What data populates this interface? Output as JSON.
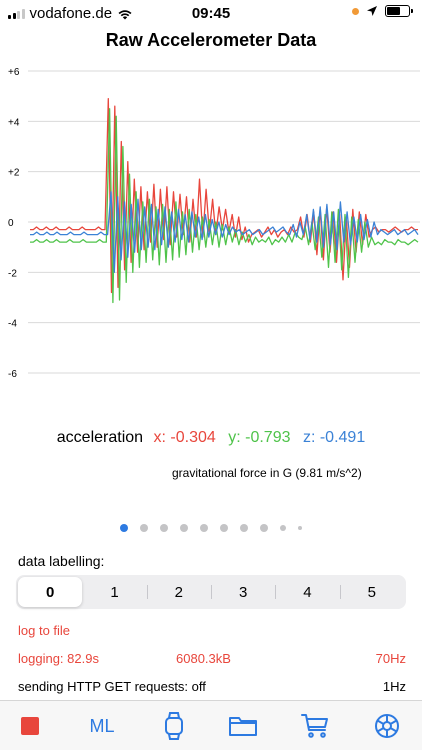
{
  "status_bar": {
    "carrier": "vodafone.de",
    "time": "09:45",
    "signal_bars": 4,
    "signal_active": 2,
    "battery_level": 0.6,
    "icons": [
      "wifi-icon",
      "location-arrow-icon",
      "battery-icon"
    ]
  },
  "title": "Raw Accelerometer Data",
  "chart_data": {
    "type": "line",
    "title": "Raw Accelerometer Data",
    "ylim": [
      -6,
      6
    ],
    "y_ticks": [
      "+6",
      "+4",
      "+2",
      "0",
      "-2",
      "-4",
      "-6"
    ],
    "y_tick_values": [
      6,
      4,
      2,
      0,
      -2,
      -4,
      -6
    ],
    "grid": true,
    "legend": "none",
    "series": [
      {
        "name": "x",
        "color": "#e8463c",
        "values": [
          -0.3,
          -0.3,
          -0.2,
          -0.3,
          -0.3,
          -0.2,
          -0.3,
          -0.3,
          -0.2,
          -0.3,
          -0.3,
          -0.3,
          -0.2,
          -0.3,
          -0.3,
          -0.3,
          -0.2,
          -0.3,
          -0.3,
          -0.3,
          -0.3,
          -0.2,
          -0.3,
          -0.3,
          4.9,
          -2.8,
          4.6,
          -2.6,
          3.2,
          -1.9,
          2.4,
          -1.6,
          1.7,
          -1.2,
          1.4,
          -1.1,
          1.2,
          -0.8,
          1.5,
          -1.0,
          1.3,
          -0.7,
          1.4,
          -0.9,
          1.2,
          -0.6,
          1.1,
          -0.5,
          1.0,
          -0.8,
          0.9,
          -0.6,
          1.7,
          -0.6,
          1.3,
          -0.4,
          0.9,
          -0.5,
          0.6,
          -0.3,
          0.5,
          -0.4,
          0.3,
          -0.6,
          0.2,
          -0.7,
          -0.2,
          -0.8,
          -0.5,
          -0.4,
          -0.3,
          -0.6,
          -0.4,
          -0.2,
          -0.5,
          -0.3,
          -0.6,
          -0.4,
          -0.3,
          -0.5,
          -0.2,
          -0.4,
          -0.3,
          0.2,
          -0.6,
          0.3,
          -0.8,
          0.4,
          -1.3,
          0.5,
          -1.5,
          0.6,
          -1.2,
          0.4,
          -1.6,
          0.3,
          -2.3,
          0.2,
          -1.8,
          0.5,
          -1.2,
          0.4,
          -0.9,
          0.3,
          -0.6,
          -0.3,
          -0.2,
          -0.4,
          -0.3,
          -0.3,
          -0.4,
          -0.3,
          -0.2,
          -0.3,
          -0.4,
          -0.3,
          -0.3,
          -0.2,
          -0.3,
          -0.3
        ]
      },
      {
        "name": "y",
        "color": "#4fc34a",
        "values": [
          -0.8,
          -0.8,
          -0.7,
          -0.8,
          -0.8,
          -0.7,
          -0.8,
          -0.8,
          -0.7,
          -0.8,
          -0.8,
          -0.8,
          -0.7,
          -0.8,
          -0.8,
          -0.8,
          -0.7,
          -0.8,
          -0.8,
          -0.8,
          -0.8,
          -0.7,
          -0.8,
          -0.8,
          4.5,
          -3.2,
          4.2,
          -3.1,
          3.0,
          -2.4,
          1.9,
          -2.0,
          1.2,
          -1.8,
          0.8,
          -1.6,
          0.9,
          -1.5,
          0.6,
          -1.7,
          0.7,
          -1.6,
          0.5,
          -1.5,
          0.8,
          -1.4,
          0.4,
          -1.3,
          0.5,
          -1.2,
          0.3,
          -1.1,
          0.2,
          -1.0,
          0.1,
          -0.9,
          0.0,
          -1.0,
          -0.1,
          -0.9,
          -0.2,
          -0.8,
          -0.3,
          -0.9,
          -0.4,
          -0.8,
          -0.5,
          -0.9,
          -0.6,
          -0.8,
          -0.7,
          -0.8,
          -0.6,
          -0.9,
          -0.7,
          -0.8,
          -0.6,
          -0.8,
          -0.5,
          -0.8,
          -0.4,
          -0.6,
          -0.7,
          -0.2,
          -0.9,
          0.0,
          -1.1,
          0.2,
          -1.4,
          0.3,
          -1.8,
          0.4,
          -1.6,
          0.5,
          -1.9,
          0.3,
          -2.2,
          0.2,
          -1.6,
          0.1,
          -1.2,
          0.0,
          -1.0,
          -0.6,
          -0.9,
          -0.8,
          -0.9,
          -0.7,
          -0.8,
          -0.8,
          -0.9,
          -0.7,
          -0.8,
          -0.8,
          -0.9,
          -0.8,
          -0.7,
          -0.8
        ]
      },
      {
        "name": "z",
        "color": "#3b82d6",
        "values": [
          -0.5,
          -0.5,
          -0.4,
          -0.5,
          -0.5,
          -0.4,
          -0.5,
          -0.5,
          -0.4,
          -0.5,
          -0.5,
          -0.5,
          -0.4,
          -0.5,
          -0.5,
          -0.5,
          -0.4,
          -0.5,
          -0.5,
          -0.5,
          -0.5,
          -0.4,
          -0.5,
          -0.5,
          1.2,
          -2.0,
          1.0,
          -1.5,
          0.8,
          -1.4,
          0.7,
          -1.2,
          0.9,
          -1.1,
          0.6,
          -1.0,
          0.7,
          -1.1,
          0.5,
          -0.9,
          0.6,
          -1.0,
          0.4,
          -0.8,
          0.5,
          -0.7,
          0.3,
          -0.8,
          0.4,
          -0.6,
          0.2,
          -0.7,
          0.3,
          -0.6,
          0.1,
          -0.5,
          0.0,
          -0.6,
          -0.1,
          -0.5,
          -0.2,
          -0.4,
          -0.3,
          -0.5,
          -0.4,
          -0.3,
          -0.5,
          -0.4,
          -0.3,
          -0.5,
          -0.4,
          -0.3,
          -0.2,
          -0.4,
          -0.3,
          -0.2,
          -0.4,
          -0.5,
          -0.1,
          -0.6,
          0.0,
          -0.5,
          0.3,
          -0.7,
          0.5,
          -0.8,
          0.6,
          -1.0,
          0.7,
          -0.9,
          0.4,
          -1.1,
          0.8,
          -0.8,
          0.4,
          -0.9,
          0.2,
          -0.8,
          0.3,
          -0.7,
          0.1,
          -0.6,
          0.0,
          -0.5,
          -0.3,
          -0.4,
          -0.5,
          -0.4,
          -0.3,
          -0.5,
          -0.4,
          -0.3,
          -0.5,
          -0.4,
          -0.3,
          -0.5
        ]
      }
    ]
  },
  "acceleration": {
    "label": "acceleration",
    "x": "x: -0.304",
    "y": "y: -0.793",
    "z": "z: -0.491",
    "note": "gravitational force in G (9.81 m/s^2)"
  },
  "page_indicator": {
    "count": 10,
    "active": 0
  },
  "labelling": {
    "caption": "data labelling:",
    "options": [
      "0",
      "1",
      "2",
      "3",
      "4",
      "5"
    ],
    "selected": "0"
  },
  "logging": {
    "log_link": "log to file",
    "duration": "logging:  82.9s",
    "size": "6080.3kB",
    "rate": "70Hz"
  },
  "http": {
    "label": "sending HTTP GET requests: off",
    "rate": "1Hz"
  },
  "tabbar": {
    "ml_label": "ML",
    "accent": "#2d7ae1",
    "stop_color": "#e8463c",
    "icons": [
      "stop-icon",
      "ml-icon",
      "watch-icon",
      "folder-icon",
      "cart-icon",
      "settings-icon"
    ]
  }
}
